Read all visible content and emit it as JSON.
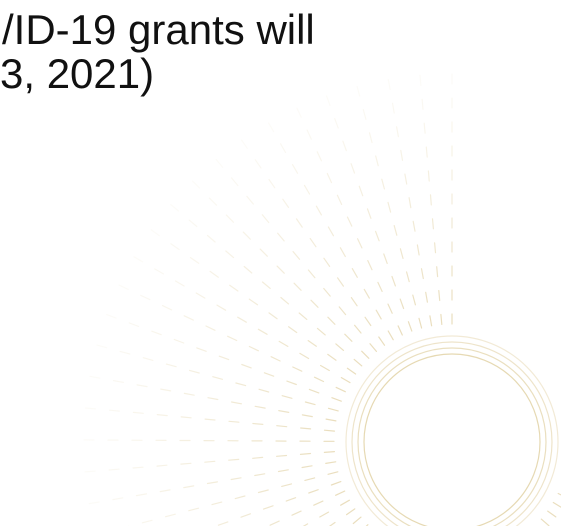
{
  "slide": {
    "title_lines": [
      "/ID-19 grants will",
      "3, 2021)"
    ]
  },
  "colors": {
    "background": "#ffffff",
    "title_text": "#111111",
    "ornament": "#d9c48a"
  },
  "decor": {
    "icon": "sunburst-ornament-icon"
  }
}
